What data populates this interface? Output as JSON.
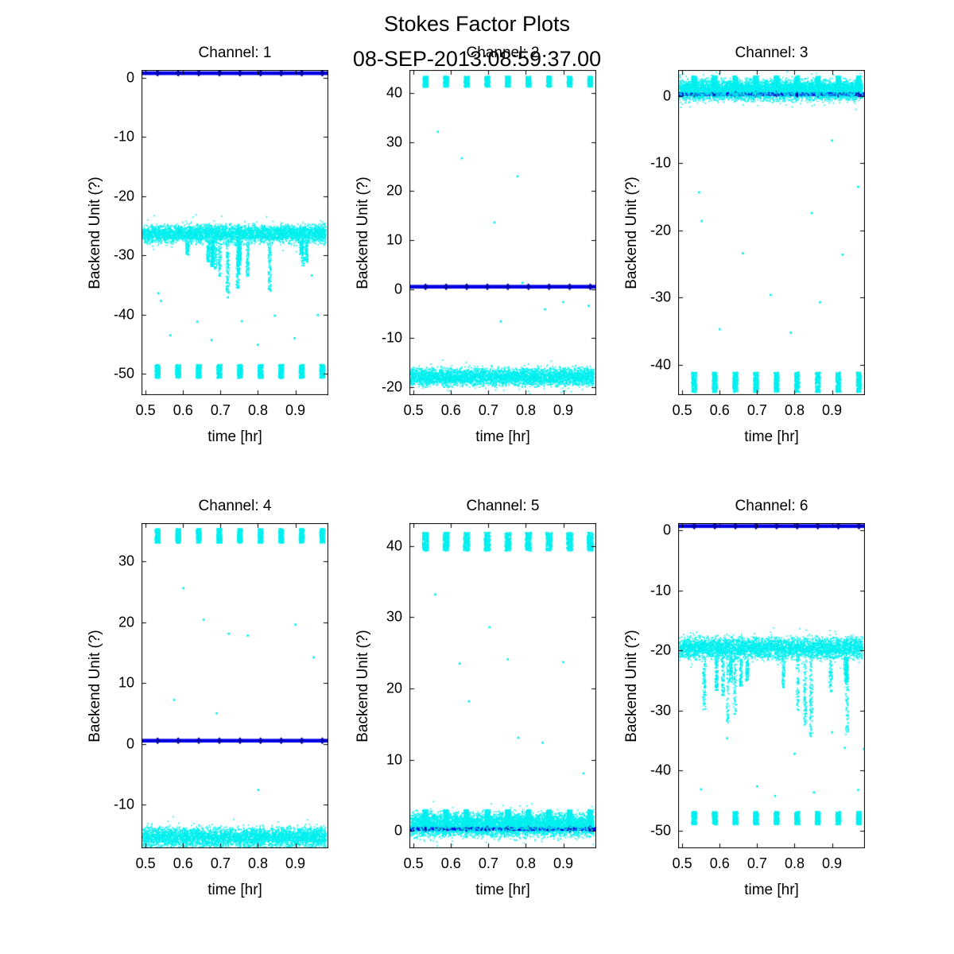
{
  "figure": {
    "title": "Stokes Factor Plots",
    "subtitle": "08-SEP-2013:08:59:37.00"
  },
  "colors": {
    "data_cyan": "#00efef",
    "line_blue": "#0000e6",
    "marker_blue": "#0000b0",
    "axis_black": "#000000",
    "background": "#ffffff"
  },
  "dash_centers": [
    0.532,
    0.587,
    0.642,
    0.697,
    0.752,
    0.807,
    0.862,
    0.917,
    0.972
  ],
  "chart_data": [
    {
      "type": "scatter",
      "title": "Channel: 1",
      "xlabel": "time [hr]",
      "ylabel": "Backend Unit (?)",
      "xlim": [
        0.489,
        0.988
      ],
      "xticks": [
        0.5,
        0.6,
        0.7,
        0.8,
        0.9
      ],
      "ylim": [
        -53.6,
        1.3
      ],
      "yticks": [
        0,
        -10,
        -20,
        -30,
        -40,
        -50
      ],
      "grid": false,
      "blue_line_y": 0.75,
      "series": [
        {
          "name": "noise-band",
          "kind": "noise",
          "y": -26.4,
          "spread": 1.0,
          "n": 4200
        },
        {
          "name": "noise-spikes",
          "kind": "spikes",
          "base": -27.5,
          "max": -37,
          "count": 15
        },
        {
          "name": "bottom-dashes",
          "kind": "dashes",
          "y": -49.6,
          "spread": 1.15
        },
        {
          "name": "outlier-points",
          "kind": "points",
          "pts": [
            [
              0.534,
              -36.4
            ],
            [
              0.541,
              -37.7
            ],
            [
              0.566,
              -43.5
            ],
            [
              0.638,
              -41.2
            ],
            [
              0.676,
              -44.3
            ],
            [
              0.72,
              -37.1
            ],
            [
              0.757,
              -41.1
            ],
            [
              0.8,
              -45.1
            ],
            [
              0.845,
              -40.2
            ],
            [
              0.898,
              -44.0
            ],
            [
              0.944,
              -33.4
            ],
            [
              0.96,
              -40.1
            ]
          ]
        }
      ]
    },
    {
      "type": "scatter",
      "title": "Channel: 2",
      "xlabel": "time [hr]",
      "ylabel": "Backend Unit (?)",
      "xlim": [
        0.489,
        0.988
      ],
      "xticks": [
        0.5,
        0.6,
        0.7,
        0.8,
        0.9
      ],
      "ylim": [
        -21.6,
        44.7
      ],
      "yticks": [
        40,
        30,
        20,
        10,
        0,
        -10,
        -20
      ],
      "grid": false,
      "blue_line_y": 0.5,
      "series": [
        {
          "name": "top-dashes",
          "kind": "dashes",
          "y": 42.3,
          "spread": 1.1
        },
        {
          "name": "noise-band",
          "kind": "noise",
          "y": -17.9,
          "spread": 1.2,
          "n": 4200
        },
        {
          "name": "outlier-points",
          "kind": "points",
          "pts": [
            [
              0.565,
              32.1
            ],
            [
              0.629,
              26.7
            ],
            [
              0.778,
              23.0
            ],
            [
              0.716,
              13.6
            ],
            [
              0.791,
              1.3
            ],
            [
              0.733,
              -6.6
            ],
            [
              0.851,
              -4.1
            ],
            [
              0.9,
              -2.6
            ],
            [
              0.968,
              -3.4
            ]
          ]
        }
      ]
    },
    {
      "type": "scatter",
      "title": "Channel: 3",
      "xlabel": "time [hr]",
      "ylabel": "Backend Unit (?)",
      "xlim": [
        0.489,
        0.988
      ],
      "xticks": [
        0.5,
        0.6,
        0.7,
        0.8,
        0.9
      ],
      "ylim": [
        -44.5,
        3.9
      ],
      "yticks": [
        0,
        -10,
        -20,
        -30,
        -40
      ],
      "grid": false,
      "blue_line_y": 0.3,
      "series": [
        {
          "name": "noise-band",
          "kind": "noise",
          "y": 0.9,
          "spread": 1.0,
          "n": 4200,
          "overlap": true
        },
        {
          "name": "top-clumps",
          "kind": "dashes",
          "y": 1.9,
          "spread": 1.1
        },
        {
          "name": "bottom-dashes",
          "kind": "dashes",
          "y": -42.6,
          "spread": 1.5
        },
        {
          "name": "outlier-points",
          "kind": "points",
          "pts": [
            [
              0.545,
              -14.3
            ],
            [
              0.552,
              -18.6
            ],
            [
              0.6,
              -34.7
            ],
            [
              0.662,
              -23.4
            ],
            [
              0.736,
              -29.6
            ],
            [
              0.79,
              -35.2
            ],
            [
              0.846,
              -17.4
            ],
            [
              0.868,
              -30.7
            ],
            [
              0.9,
              -6.6
            ],
            [
              0.928,
              -23.6
            ],
            [
              0.97,
              -13.5
            ]
          ]
        }
      ]
    },
    {
      "type": "scatter",
      "title": "Channel: 4",
      "xlabel": "time [hr]",
      "ylabel": "Backend Unit (?)",
      "xlim": [
        0.489,
        0.988
      ],
      "xticks": [
        0.5,
        0.6,
        0.7,
        0.8,
        0.9
      ],
      "ylim": [
        -17.2,
        36.3
      ],
      "yticks": [
        30,
        20,
        10,
        0,
        -10
      ],
      "grid": false,
      "blue_line_y": 0.5,
      "series": [
        {
          "name": "top-dashes",
          "kind": "dashes",
          "y": 34.2,
          "spread": 1.2
        },
        {
          "name": "noise-band",
          "kind": "noise",
          "y": -15.4,
          "spread": 1.1,
          "n": 4200
        },
        {
          "name": "outlier-points",
          "kind": "points",
          "pts": [
            [
              0.601,
              25.6
            ],
            [
              0.655,
              20.4
            ],
            [
              0.722,
              18.1
            ],
            [
              0.773,
              17.8
            ],
            [
              0.576,
              7.2
            ],
            [
              0.69,
              5.0
            ],
            [
              0.801,
              -7.6
            ],
            [
              0.9,
              19.6
            ],
            [
              0.949,
              14.2
            ]
          ]
        }
      ]
    },
    {
      "type": "scatter",
      "title": "Channel: 5",
      "xlabel": "time [hr]",
      "ylabel": "Backend Unit (?)",
      "xlim": [
        0.489,
        0.988
      ],
      "xticks": [
        0.5,
        0.6,
        0.7,
        0.8,
        0.9
      ],
      "ylim": [
        -2.4,
        43.2
      ],
      "yticks": [
        0,
        10,
        20,
        30,
        40
      ],
      "grid": false,
      "blue_line_y": 0.3,
      "series": [
        {
          "name": "noise-band",
          "kind": "noise",
          "y": 0.9,
          "spread": 1.1,
          "n": 4200,
          "overlap": true
        },
        {
          "name": "band-clumps",
          "kind": "dashes",
          "y": 1.9,
          "spread": 1.1
        },
        {
          "name": "top-dashes",
          "kind": "dashes",
          "y": 40.6,
          "spread": 1.3,
          "width": 0.016
        },
        {
          "name": "outlier-points",
          "kind": "points",
          "pts": [
            [
              0.558,
              33.2
            ],
            [
              0.623,
              23.5
            ],
            [
              0.703,
              28.6
            ],
            [
              0.752,
              24.1
            ],
            [
              0.78,
              13.1
            ],
            [
              0.845,
              12.4
            ],
            [
              0.9,
              23.7
            ],
            [
              0.954,
              8.1
            ],
            [
              0.648,
              18.2
            ]
          ]
        }
      ]
    },
    {
      "type": "scatter",
      "title": "Channel: 6",
      "xlabel": "time [hr]",
      "ylabel": "Backend Unit (?)",
      "xlim": [
        0.489,
        0.988
      ],
      "xticks": [
        0.5,
        0.6,
        0.7,
        0.8,
        0.9
      ],
      "ylim": [
        -52.9,
        1.2
      ],
      "yticks": [
        0,
        -10,
        -20,
        -30,
        -40,
        -50
      ],
      "grid": false,
      "blue_line_y": 0.7,
      "series": [
        {
          "name": "noise-band",
          "kind": "noise",
          "y": -19.6,
          "spread": 1.2,
          "n": 4200
        },
        {
          "name": "noise-spikes",
          "kind": "spikes",
          "base": -21.0,
          "max": -34.5,
          "count": 16
        },
        {
          "name": "bottom-dashes",
          "kind": "dashes",
          "y": -47.9,
          "spread": 1.1
        },
        {
          "name": "outlier-points",
          "kind": "points",
          "pts": [
            [
              0.55,
              -43.1
            ],
            [
              0.62,
              -34.6
            ],
            [
              0.7,
              -42.6
            ],
            [
              0.748,
              -44.2
            ],
            [
              0.8,
              -37.2
            ],
            [
              0.852,
              -43.6
            ],
            [
              0.9,
              -33.6
            ],
            [
              0.934,
              -36.2
            ],
            [
              0.97,
              -43.2
            ],
            [
              0.985,
              -36.4
            ]
          ]
        }
      ]
    }
  ]
}
